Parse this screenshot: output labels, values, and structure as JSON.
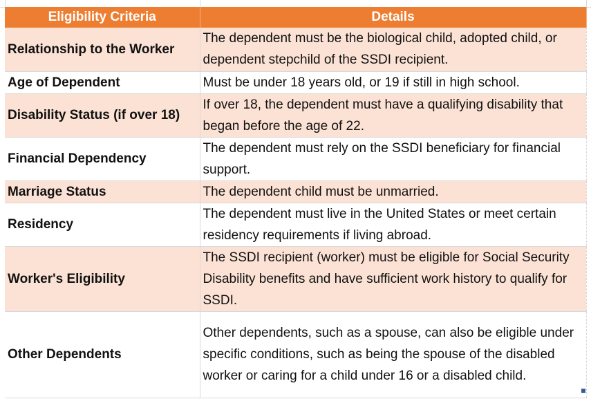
{
  "table": {
    "headers": {
      "criteria": "Eligibility Criteria",
      "details": "Details"
    },
    "rows": [
      {
        "criteria": "Relationship to the Worker",
        "details": "The dependent must be the biological child, adopted child, or dependent stepchild of the SSDI recipient."
      },
      {
        "criteria": "Age of Dependent",
        "details": "Must be under 18 years old, or 19 if still in high school."
      },
      {
        "criteria": "Disability Status (if over 18)",
        "details": "If over 18, the dependent must have a qualifying disability that began before the age of 22."
      },
      {
        "criteria": "Financial Dependency",
        "details": "The dependent must rely on the SSDI beneficiary for financial support."
      },
      {
        "criteria": "Marriage Status",
        "details": "The dependent child must be unmarried."
      },
      {
        "criteria": "Residency",
        "details": "The dependent must live in the United States or meet certain residency requirements if living abroad."
      },
      {
        "criteria": "Worker's Eligibility",
        "details": "The SSDI recipient (worker) must be eligible for Social Security Disability benefits and have sufficient work history to qualify for SSDI."
      },
      {
        "criteria": "Other Dependents",
        "details": "Other dependents, such as a spouse, can also be eligible under specific conditions, such as being the spouse of the disabled worker or caring for a child under 16 or a disabled child."
      }
    ]
  },
  "colors": {
    "header_bg": "#ed7d31",
    "header_text": "#ffffff",
    "band_shade": "#fbe2d5",
    "band_plain": "#ffffff"
  }
}
